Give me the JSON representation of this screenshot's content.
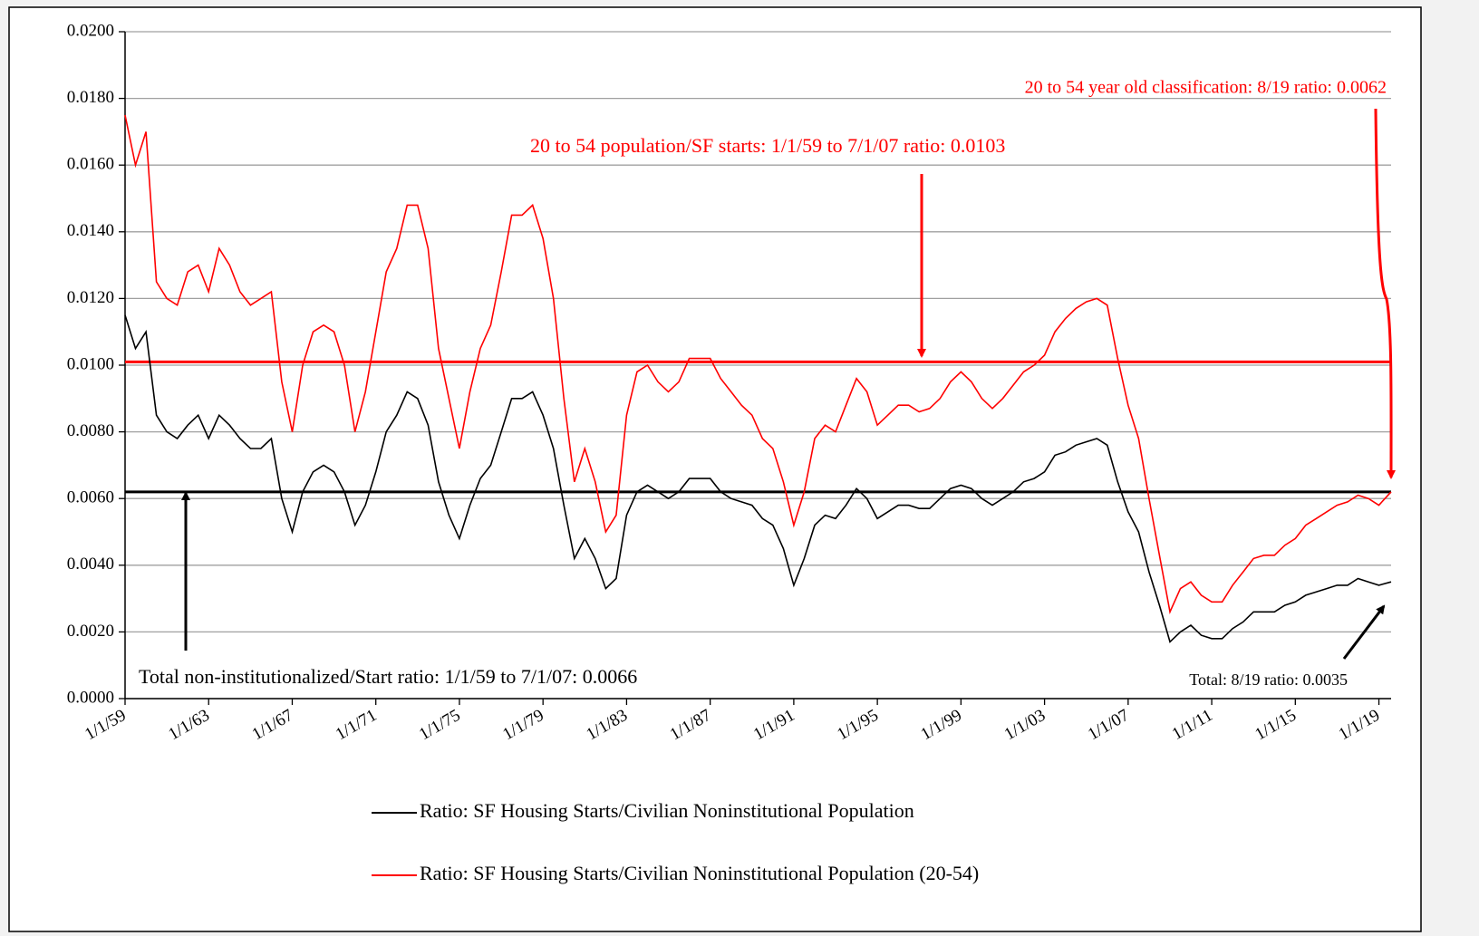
{
  "chart_data": {
    "type": "line",
    "x": [
      "1/1/59",
      "7/1/59",
      "1/1/60",
      "7/1/60",
      "1/1/61",
      "7/1/61",
      "1/1/62",
      "7/1/62",
      "1/1/63",
      "7/1/63",
      "1/1/64",
      "7/1/64",
      "1/1/65",
      "7/1/65",
      "1/1/66",
      "7/1/66",
      "1/1/67",
      "7/1/67",
      "1/1/68",
      "7/1/68",
      "1/1/69",
      "7/1/69",
      "1/1/70",
      "7/1/70",
      "1/1/71",
      "7/1/71",
      "1/1/72",
      "7/1/72",
      "1/1/73",
      "7/1/73",
      "1/1/74",
      "7/1/74",
      "1/1/75",
      "7/1/75",
      "1/1/76",
      "7/1/76",
      "1/1/77",
      "7/1/77",
      "1/1/78",
      "7/1/78",
      "1/1/79",
      "7/1/79",
      "1/1/80",
      "7/1/80",
      "1/1/81",
      "7/1/81",
      "1/1/82",
      "7/1/82",
      "1/1/83",
      "7/1/83",
      "1/1/84",
      "7/1/84",
      "1/1/85",
      "7/1/85",
      "1/1/86",
      "7/1/86",
      "1/1/87",
      "7/1/87",
      "1/1/88",
      "7/1/88",
      "1/1/89",
      "7/1/89",
      "1/1/90",
      "7/1/90",
      "1/1/91",
      "7/1/91",
      "1/1/92",
      "7/1/92",
      "1/1/93",
      "7/1/93",
      "1/1/94",
      "7/1/94",
      "1/1/95",
      "7/1/95",
      "1/1/96",
      "7/1/96",
      "1/1/97",
      "7/1/97",
      "1/1/98",
      "7/1/98",
      "1/1/99",
      "7/1/99",
      "1/1/00",
      "7/1/00",
      "1/1/01",
      "7/1/01",
      "1/1/02",
      "7/1/02",
      "1/1/03",
      "7/1/03",
      "1/1/04",
      "7/1/04",
      "1/1/05",
      "7/1/05",
      "1/1/06",
      "7/1/06",
      "1/1/07",
      "7/1/07",
      "1/1/08",
      "7/1/08",
      "1/1/09",
      "7/1/09",
      "1/1/10",
      "7/1/10",
      "1/1/11",
      "7/1/11",
      "1/1/12",
      "7/1/12",
      "1/1/13",
      "7/1/13",
      "1/1/14",
      "7/1/14",
      "1/1/15",
      "7/1/15",
      "1/1/16",
      "7/1/16",
      "1/1/17",
      "7/1/17",
      "1/1/18",
      "7/1/18",
      "1/1/19",
      "8/1/19"
    ],
    "series": [
      {
        "name": "Ratio: SF Housing Starts/Civilian Noninstitutional Population",
        "color": "#000000",
        "values": [
          0.0115,
          0.0105,
          0.011,
          0.0085,
          0.008,
          0.0078,
          0.0082,
          0.0085,
          0.0078,
          0.0085,
          0.0082,
          0.0078,
          0.0075,
          0.0075,
          0.0078,
          0.006,
          0.005,
          0.0062,
          0.0068,
          0.007,
          0.0068,
          0.0062,
          0.0052,
          0.0058,
          0.0068,
          0.008,
          0.0085,
          0.0092,
          0.009,
          0.0082,
          0.0065,
          0.0055,
          0.0048,
          0.0058,
          0.0066,
          0.007,
          0.008,
          0.009,
          0.009,
          0.0092,
          0.0085,
          0.0075,
          0.0058,
          0.0042,
          0.0048,
          0.0042,
          0.0033,
          0.0036,
          0.0055,
          0.0062,
          0.0064,
          0.0062,
          0.006,
          0.0062,
          0.0066,
          0.0066,
          0.0066,
          0.0062,
          0.006,
          0.0059,
          0.0058,
          0.0054,
          0.0052,
          0.0045,
          0.0034,
          0.0042,
          0.0052,
          0.0055,
          0.0054,
          0.0058,
          0.0063,
          0.006,
          0.0054,
          0.0056,
          0.0058,
          0.0058,
          0.0057,
          0.0057,
          0.006,
          0.0063,
          0.0064,
          0.0063,
          0.006,
          0.0058,
          0.006,
          0.0062,
          0.0065,
          0.0066,
          0.0068,
          0.0073,
          0.0074,
          0.0076,
          0.0077,
          0.0078,
          0.0076,
          0.0065,
          0.0056,
          0.005,
          0.0038,
          0.0028,
          0.0017,
          0.002,
          0.0022,
          0.0019,
          0.0018,
          0.0018,
          0.0021,
          0.0023,
          0.0026,
          0.0026,
          0.0026,
          0.0028,
          0.0029,
          0.0031,
          0.0032,
          0.0033,
          0.0034,
          0.0034,
          0.0036,
          0.0035,
          0.0034,
          0.0035
        ]
      },
      {
        "name": "Ratio: SF Housing Starts/Civilian Noninstitutional Population (20-54)",
        "color": "#ff0000",
        "values": [
          0.0175,
          0.016,
          0.017,
          0.0125,
          0.012,
          0.0118,
          0.0128,
          0.013,
          0.0122,
          0.0135,
          0.013,
          0.0122,
          0.0118,
          0.012,
          0.0122,
          0.0095,
          0.008,
          0.01,
          0.011,
          0.0112,
          0.011,
          0.01,
          0.008,
          0.0092,
          0.011,
          0.0128,
          0.0135,
          0.0148,
          0.0148,
          0.0135,
          0.0105,
          0.009,
          0.0075,
          0.0092,
          0.0105,
          0.0112,
          0.0128,
          0.0145,
          0.0145,
          0.0148,
          0.0138,
          0.012,
          0.009,
          0.0065,
          0.0075,
          0.0065,
          0.005,
          0.0055,
          0.0085,
          0.0098,
          0.01,
          0.0095,
          0.0092,
          0.0095,
          0.0102,
          0.0102,
          0.0102,
          0.0096,
          0.0092,
          0.0088,
          0.0085,
          0.0078,
          0.0075,
          0.0065,
          0.0052,
          0.0062,
          0.0078,
          0.0082,
          0.008,
          0.0088,
          0.0096,
          0.0092,
          0.0082,
          0.0085,
          0.0088,
          0.0088,
          0.0086,
          0.0087,
          0.009,
          0.0095,
          0.0098,
          0.0095,
          0.009,
          0.0087,
          0.009,
          0.0094,
          0.0098,
          0.01,
          0.0103,
          0.011,
          0.0114,
          0.0117,
          0.0119,
          0.012,
          0.0118,
          0.0102,
          0.0088,
          0.0078,
          0.006,
          0.0043,
          0.0026,
          0.0033,
          0.0035,
          0.0031,
          0.0029,
          0.0029,
          0.0034,
          0.0038,
          0.0042,
          0.0043,
          0.0043,
          0.0046,
          0.0048,
          0.0052,
          0.0054,
          0.0056,
          0.0058,
          0.0059,
          0.0061,
          0.006,
          0.0058,
          0.0062
        ]
      }
    ],
    "reference_lines": [
      {
        "value": 0.0101,
        "color": "#ff0000"
      },
      {
        "value": 0.0062,
        "color": "#000000"
      }
    ],
    "annotations": [
      {
        "text": "20 to 54 year old classification: 8/19 ratio: 0.0062",
        "color": "#ff0000"
      },
      {
        "text": "20 to 54 population/SF starts: 1/1/59 to 7/1/07 ratio: 0.0103",
        "color": "#ff0000"
      },
      {
        "text": "Total non-institutionalized/Start ratio: 1/1/59 to 7/1/07: 0.0066",
        "color": "#000000"
      },
      {
        "text": "Total: 8/19 ratio: 0.0035",
        "color": "#000000"
      }
    ],
    "xlim": [
      "1/1/59",
      "8/1/19"
    ],
    "xticks": [
      "1/1/59",
      "1/1/63",
      "1/1/67",
      "1/1/71",
      "1/1/75",
      "1/1/79",
      "1/1/83",
      "1/1/87",
      "1/1/91",
      "1/1/95",
      "1/1/99",
      "1/1/03",
      "1/1/07",
      "1/1/11",
      "1/1/15",
      "1/1/19"
    ],
    "ylim": [
      0,
      0.02
    ],
    "yticks": [
      {
        "value": 0,
        "label": "0.0000"
      },
      {
        "value": 0.002,
        "label": "0.0020"
      },
      {
        "value": 0.004,
        "label": "0.0040"
      },
      {
        "value": 0.006,
        "label": "0.0060"
      },
      {
        "value": 0.008,
        "label": "0.0080"
      },
      {
        "value": 0.01,
        "label": "0.0100"
      },
      {
        "value": 0.012,
        "label": "0.0120"
      },
      {
        "value": 0.014,
        "label": "0.0140"
      },
      {
        "value": 0.016,
        "label": "0.0160"
      },
      {
        "value": 0.018,
        "label": "0.0180"
      },
      {
        "value": 0.02,
        "label": "0.0200"
      }
    ],
    "grid": true,
    "legend": "bottom"
  }
}
